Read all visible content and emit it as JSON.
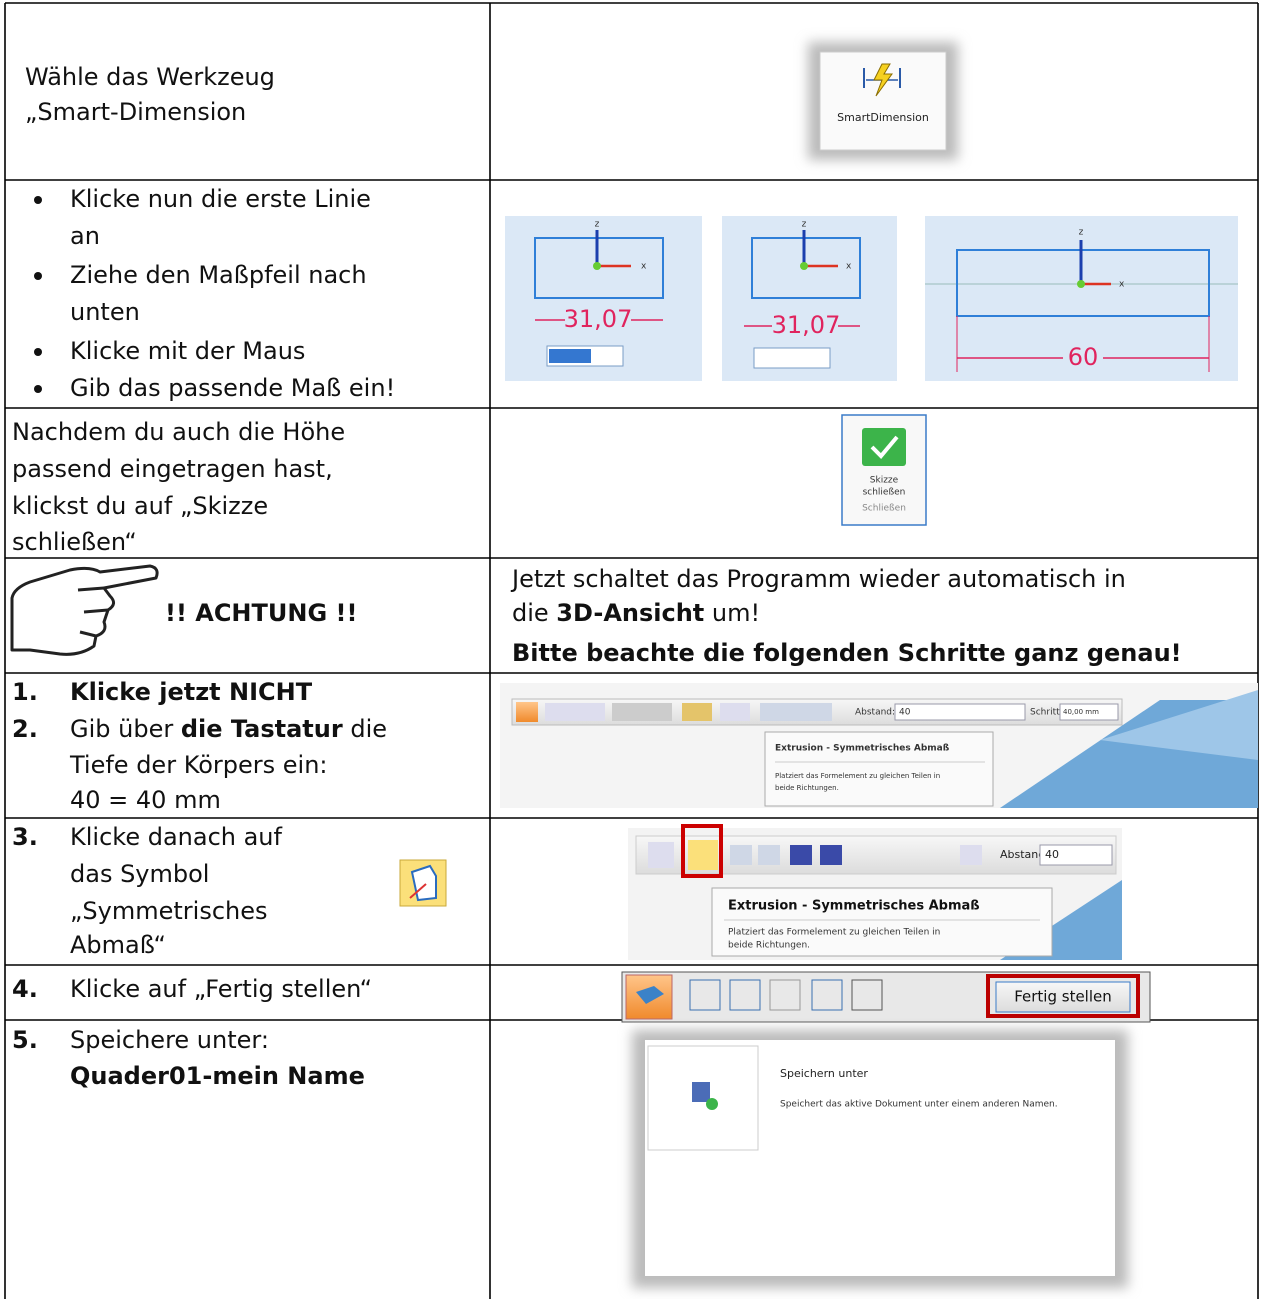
{
  "rows": [
    {
      "text": [
        "Wähle das Werkzeug",
        "„Smart-Dimension"
      ],
      "image": {
        "label": "SmartDimension"
      }
    },
    {
      "bullets": [
        [
          "Klicke nun die erste Linie",
          "an"
        ],
        [
          "Ziehe den Maßpfeil nach",
          "unten"
        ],
        [
          "Klicke mit der Maus"
        ],
        [
          "Gib das passende Maß ein!"
        ]
      ],
      "image": {
        "axes": [
          "z",
          "x"
        ],
        "dimensions": [
          "31,07",
          "31,07",
          "60"
        ]
      }
    },
    {
      "text": [
        "Nachdem du auch die Höhe",
        "passend eingetragen hast,",
        "klickst du auf „Skizze",
        "schließen“"
      ],
      "image": {
        "label": [
          "Skizze",
          "schließen"
        ],
        "group": "Schließen"
      }
    },
    {
      "warning": "!! ACHTUNG !!",
      "note": [
        "Jetzt schaltet das Programm wieder automatisch in",
        "die ",
        "3D-Ansicht",
        " um!"
      ],
      "emphasis": "Bitte beachte die folgenden Schritte ganz genau!"
    },
    {
      "steps": [
        {
          "number": "1.",
          "lines": [
            [
              "Klicke jetzt NICHT"
            ]
          ]
        },
        {
          "number": "2.",
          "lines": [
            [
              "Gib über ",
              "die Tastatur",
              " die"
            ],
            [
              "Tiefe der Körpers ein:"
            ],
            [
              "40 = 40 mm"
            ]
          ]
        }
      ],
      "image": {
        "fields": [
          "Abstand:",
          "40",
          "Schritt:",
          "40,00 mm"
        ],
        "tooltip_title": "Extrusion - Symmetrisches Abmaß",
        "tooltip_text": [
          "Platziert das Formelement zu gleichen Teilen in",
          "beide Richtungen."
        ]
      }
    },
    {
      "number": "3.",
      "lines": [
        "Klicke danach auf",
        "das Symbol",
        "„Symmetrisches",
        "Abmaß“"
      ],
      "image": {
        "field_label": "Abstand:",
        "field_value": "40",
        "tooltip_title": "Extrusion - Symmetrisches Abmaß",
        "tooltip_text": [
          "Platziert das Formelement zu gleichen Teilen in",
          "beide Richtungen."
        ]
      }
    },
    {
      "number": "4.",
      "text": "Klicke auf „Fertig stellen“",
      "image": {
        "button": "Fertig stellen"
      }
    },
    {
      "number": "5.",
      "lines": [
        "Speichere unter:",
        "Quader01-mein Name"
      ],
      "image": {
        "title": "Speichern unter",
        "text": "Speichert das aktive Dokument unter einem anderen Namen."
      }
    }
  ]
}
